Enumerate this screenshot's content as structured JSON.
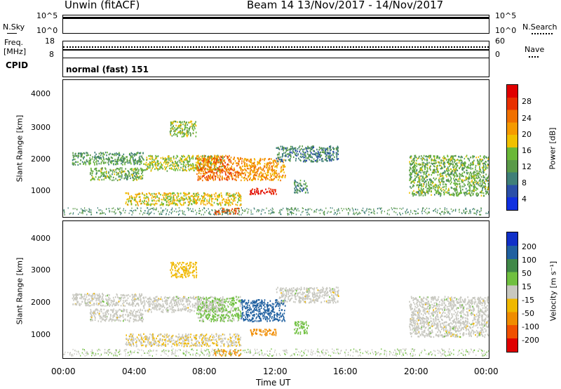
{
  "header": {
    "station": "Unwin (fitACF)",
    "beam_range": "Beam 14  13/Nov/2017 - 14/Nov/2017"
  },
  "nsky_panel": {
    "left_label": "N.Sky",
    "left_ticks": [
      "10^5",
      "10^0"
    ],
    "right_ticks": [
      "10^5",
      "10^0"
    ],
    "right_label": "N.Search"
  },
  "freq_panel": {
    "left_label_line1": "Freq.",
    "left_label_line2": "[MHz]",
    "left_ticks": [
      "18",
      "8"
    ],
    "right_ticks": [
      "60",
      "0"
    ],
    "right_label": "Nave"
  },
  "cpid_panel": {
    "left_label": "CPID",
    "mode_text": "normal (fast) 151"
  },
  "power_panel": {
    "ylabel": "Slant Range [km]",
    "yticks": [
      "4000",
      "3000",
      "2000",
      "1000"
    ],
    "colorbar_label": "Power [dB]",
    "colorbar_ticks": [
      "28",
      "24",
      "20",
      "16",
      "12",
      "8",
      "4"
    ],
    "colors": [
      "#1030e0",
      "#2a4fa8",
      "#3f7f78",
      "#5a9a48",
      "#6ab838",
      "#f0c000",
      "#f59a00",
      "#f07000",
      "#e83000",
      "#e00000"
    ]
  },
  "velocity_panel": {
    "ylabel": "Slant Range [km]",
    "yticks": [
      "4000",
      "3000",
      "2000",
      "1000"
    ],
    "colorbar_label": "Velocity [m s⁻¹]",
    "colorbar_ticks": [
      "200",
      "100",
      "50",
      "15",
      "-15",
      "-50",
      "-100",
      "-200"
    ],
    "colors": [
      "#1030c8",
      "#2060a0",
      "#408848",
      "#70c040",
      "#c8c8c0",
      "#f0b800",
      "#f08c00",
      "#f05000",
      "#e00000"
    ]
  },
  "x_axis": {
    "ticks": [
      "00:00",
      "04:00",
      "08:00",
      "12:00",
      "16:00",
      "20:00",
      "00:00"
    ],
    "label": "Time UT"
  },
  "chart_data": {
    "type": "heatmap",
    "title": "Unwin (fitACF) Beam 14 13/Nov/2017 - 14/Nov/2017",
    "xlabel": "Time UT",
    "ylabel": "Slant Range [km]",
    "xlim": [
      0,
      24
    ],
    "ylim": [
      200,
      4600
    ],
    "xticks": [
      "00:00",
      "04:00",
      "08:00",
      "12:00",
      "16:00",
      "20:00",
      "00:00"
    ],
    "yticks": [
      1000,
      2000,
      3000,
      4000
    ],
    "power_colorbar": {
      "label": "Power [dB]",
      "range": [
        0,
        30
      ],
      "ticks": [
        4,
        8,
        12,
        16,
        20,
        24,
        28
      ]
    },
    "velocity_colorbar": {
      "label": "Velocity [m s^-1]",
      "ticks": [
        -200,
        -100,
        -50,
        -15,
        15,
        50,
        100,
        200
      ]
    },
    "cpid": "normal (fast) 151",
    "scatter_regions": [
      {
        "t_start": 0.5,
        "t_end": 4.5,
        "r_start": 1900,
        "r_end": 2300,
        "power": 10,
        "velocity": 0
      },
      {
        "t_start": 1.5,
        "t_end": 4.5,
        "r_start": 1400,
        "r_end": 1800,
        "power": 12,
        "velocity": 0
      },
      {
        "t_start": 4.5,
        "t_end": 9.0,
        "r_start": 1700,
        "r_end": 2200,
        "power": 14,
        "velocity": 0
      },
      {
        "t_start": 6.0,
        "t_end": 7.5,
        "r_start": 2800,
        "r_end": 3300,
        "power": 13,
        "velocity": -30
      },
      {
        "t_start": 3.5,
        "t_end": 10.0,
        "r_start": 600,
        "r_end": 1000,
        "power": 16,
        "velocity": -10
      },
      {
        "t_start": 7.5,
        "t_end": 10.0,
        "r_start": 1400,
        "r_end": 2200,
        "power": 22,
        "velocity": 20
      },
      {
        "t_start": 10.0,
        "t_end": 12.5,
        "r_start": 1400,
        "r_end": 2100,
        "power": 20,
        "velocity": 120
      },
      {
        "t_start": 10.5,
        "t_end": 12.0,
        "r_start": 950,
        "r_end": 1150,
        "power": 28,
        "velocity": -80
      },
      {
        "t_start": 8.5,
        "t_end": 10.0,
        "r_start": 300,
        "r_end": 500,
        "power": 24,
        "velocity": -60
      },
      {
        "t_start": 12.0,
        "t_end": 15.5,
        "r_start": 2000,
        "r_end": 2500,
        "power": 8,
        "velocity": 0
      },
      {
        "t_start": 13.0,
        "t_end": 13.8,
        "r_start": 1000,
        "r_end": 1400,
        "power": 9,
        "velocity": 30
      },
      {
        "t_start": 19.5,
        "t_end": 24.0,
        "r_start": 900,
        "r_end": 2200,
        "power": 12,
        "velocity": 0
      }
    ]
  }
}
